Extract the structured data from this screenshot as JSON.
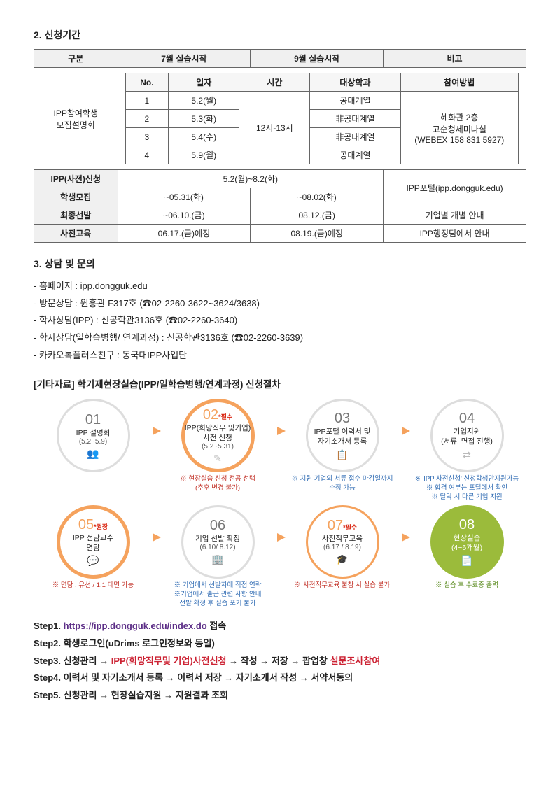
{
  "section2": {
    "title": "2. 신청기간",
    "header": {
      "c1": "구분",
      "c2": "7월 실습시작",
      "c3": "9월 실습시작",
      "c4": "비고"
    },
    "inner_header": {
      "no": "No.",
      "date": "일자",
      "time": "시간",
      "dept": "대상학과",
      "method": "참여방법"
    },
    "row1_label": "IPP참여학생\n모집설명회",
    "inner_rows": [
      {
        "no": "1",
        "date": "5.2(월)",
        "dept": "공대계열"
      },
      {
        "no": "2",
        "date": "5.3(화)",
        "dept": "非공대계열"
      },
      {
        "no": "3",
        "date": "5.4(수)",
        "dept": "非공대계열"
      },
      {
        "no": "4",
        "date": "5.9(월)",
        "dept": "공대계열"
      }
    ],
    "time_merged": "12시-13시",
    "method_merged": "혜화관 2층\n고순청세미나실\n(WEBEX 158 831 5927)",
    "rows": [
      {
        "label": "IPP(사전)신청",
        "c2": "5.2(월)~8.2(화)",
        "c3": "",
        "c4": "IPP포털(ipp.dongguk.edu)",
        "span23": true,
        "span4_rows": 2
      },
      {
        "label": "학생모집",
        "c2": "~05.31(화)",
        "c3": "~08.02(화)",
        "c4": ""
      },
      {
        "label": "최종선발",
        "c2": "~06.10.(금)",
        "c3": "08.12.(금)",
        "c4": "기업별 개별 안내"
      },
      {
        "label": "사전교육",
        "c2": "06.17.(금)예정",
        "c3": "08.19.(금)예정",
        "c4": "IPP행정팀에서 안내"
      }
    ]
  },
  "section3": {
    "title": "3. 상담 및 문의",
    "items": [
      "홈페이지 : ipp.dongguk.edu",
      "방문상담 : 원흥관 F317호 (☎02-2260-3622~3624/3638)",
      "학사상담(IPP) : 신공학관3136호 (☎02-2260-3640)",
      "학사상담(일학습병행/ 연계과정) : 신공학관3136호 (☎02-2260-3639)",
      "카카오톡플러스친구 : 동국대IPP사업단"
    ]
  },
  "flow": {
    "title": "[기타자료] 학기제현장실습(IPP/일학습병행/연계과정) 신청절차",
    "steps": [
      {
        "num": "01",
        "ring": "ring-gray",
        "title": "IPP 설명회",
        "date": "(5.2~5.9)",
        "icon": "👥",
        "note": "",
        "arrow": true
      },
      {
        "num": "02",
        "tag": "*필수",
        "ring": "ring-orange",
        "title": "IPP(희망직무 및기업)\n사전 신청",
        "date": "(5.2~5.31)",
        "icon": "✎",
        "note": "※ 현장실습 신청 전공 선택\n(추후 변경 불가)",
        "note_cls": "note-red",
        "arrow": true
      },
      {
        "num": "03",
        "ring": "ring-gray",
        "title": "IPP포털 이력서 및\n자기소개서 등록",
        "date": "",
        "icon": "📋",
        "note": "※ 지원 기업의 서류 접수 마감일까지\n수정 가능",
        "arrow": true
      },
      {
        "num": "04",
        "ring": "ring-gray",
        "title": "기업지원\n(서류, 면접 진행)",
        "date": "",
        "icon": "⇄",
        "note": "※ 'IPP 사전신청' 신청학생만지원가능\n※ 합격 여부는 포털에서 확인\n※ 탈락 시 다른 기업 지원",
        "arrow": false
      },
      {
        "num": "05",
        "tag": "*권장",
        "ring": "ring-orange",
        "title": "IPP 전담교수\n면담",
        "date": "",
        "icon": "💬",
        "note": "※ 면담 : 유선 / 1:1 대면 가능",
        "note_cls": "note-red",
        "arrow": true
      },
      {
        "num": "06",
        "ring": "ring-gray",
        "title": "기업 선발 확정",
        "date": "(6.10/ 8.12)",
        "icon": "🏢",
        "note": "※ 기업에서 선발자에 직접 연락\n※기업에서 출근 관련 사항 안내\n선발 확정 후 실습 포기 불가",
        "arrow": true
      },
      {
        "num": "07",
        "tag": "*필수",
        "ring": "ring-orange-thin",
        "title": "사전직무교육",
        "date": "(6.17 / 8.19)",
        "icon": "🎓",
        "note": "※ 사전직무교육 불참 시 실습 불가",
        "note_cls": "note-red",
        "arrow": true
      },
      {
        "num": "08",
        "ring": "fill-green",
        "num_cls": "num-white",
        "title": "현장실습\n(4~6개월)",
        "date": "",
        "icon": "📄",
        "icon_cls": "icon-mini-w",
        "white_text": true,
        "note": "※ 실습 후 수료증 출력",
        "note_cls": "note-green",
        "arrow": false
      }
    ]
  },
  "steps_text": {
    "s1_label": "Step1.",
    "s1_link": "https://ipp.dongguk.edu/index.do",
    "s1_rest": " 접속",
    "s2": "Step2.  학생로그인(uDrims 로그인정보와 동일)",
    "s3_a": "Step3.  신청관리 → ",
    "s3_b": "IPP(희망직무및 기업)사전신청",
    "s3_c": " → 작성 → 저장 → 팝업창 ",
    "s3_d": "설문조사참여",
    "s4": "Step4.  이력서 및 자기소개서 등록 → 이력서 저장 →  자기소개서 작성 → 서약서동의",
    "s5": "Step5.  신청관리 → 현장실습지원 → 지원결과 조회"
  }
}
